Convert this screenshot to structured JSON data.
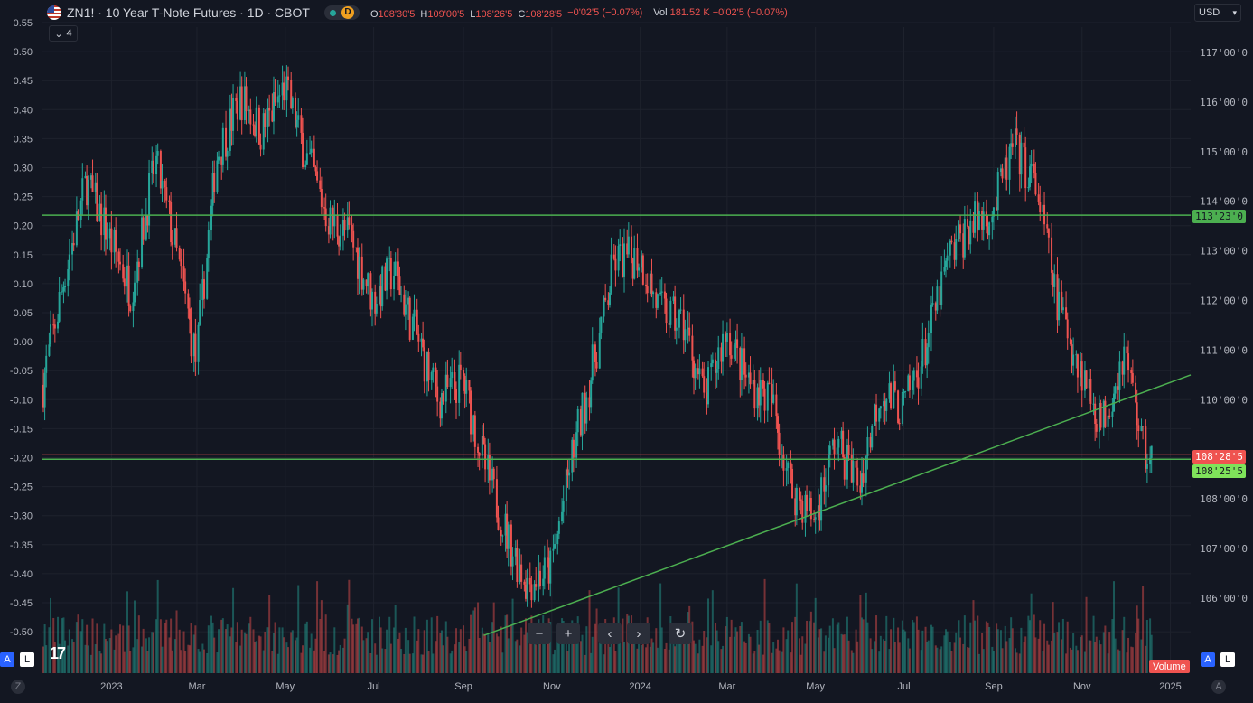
{
  "header": {
    "title": "ZN1! · 10 Year T-Note Futures · 1D · CBOT",
    "timeframe_badge": "D",
    "ohlc": [
      {
        "k": "O",
        "v": "108'30'5"
      },
      {
        "k": "H",
        "v": "109'00'5"
      },
      {
        "k": "L",
        "v": "108'26'5"
      },
      {
        "k": "C",
        "v": "108'28'5"
      }
    ],
    "change": "−0'02'5 (−0.07%)",
    "vol_label": "Vol",
    "vol_value": "181.52 K",
    "vol_change": "−0'02'5 (−0.07%)",
    "indicators_count": "4"
  },
  "currency": "USD",
  "price_tags": {
    "resistance": "113'23'0",
    "last": "108'28'5",
    "support": "108'25'5"
  },
  "volume_label": "Volume",
  "corner_buttons": {
    "auto": "A",
    "log": "L",
    "auto_right": "A",
    "log_right": "L",
    "zoom_left": "Z",
    "zoom_right": "A"
  },
  "colors": {
    "up": "#26a69a",
    "down": "#ef5350",
    "line": "#4caf50",
    "bg": "#131722",
    "grid": "#1e222d"
  },
  "icons": [
    "chevron-down-icon",
    "zoom-out-icon",
    "zoom-in-icon",
    "scroll-left-icon",
    "scroll-right-icon",
    "reset-icon"
  ],
  "chart_data": {
    "type": "candlestick",
    "left_axis_ticks": [
      "0.55",
      "0.50",
      "0.45",
      "0.40",
      "0.35",
      "0.30",
      "0.25",
      "0.20",
      "0.15",
      "0.10",
      "0.05",
      "0.00",
      "-0.05",
      "-0.10",
      "-0.15",
      "-0.20",
      "-0.25",
      "-0.30",
      "-0.35",
      "-0.40",
      "-0.45",
      "-0.50"
    ],
    "right_axis_ticks": [
      "117'00'0",
      "116'00'0",
      "115'00'0",
      "114'00'0",
      "113'00'0",
      "112'00'0",
      "111'00'0",
      "110'00'0",
      "108'00'0",
      "107'00'0",
      "106'00'0"
    ],
    "x_ticks": [
      "2023",
      "Mar",
      "May",
      "Jul",
      "Sep",
      "Nov",
      "2024",
      "Mar",
      "May",
      "Jul",
      "Sep",
      "Nov",
      "2025"
    ],
    "price_range": [
      105.0,
      117.0
    ],
    "close_path": [
      {
        "date": "2022-11-15",
        "close": 110.3
      },
      {
        "date": "2022-12-01",
        "close": 112.6
      },
      {
        "date": "2022-12-15",
        "close": 114.4
      },
      {
        "date": "2023-01-01",
        "close": 113.2
      },
      {
        "date": "2023-01-15",
        "close": 112.2
      },
      {
        "date": "2023-02-01",
        "close": 114.8
      },
      {
        "date": "2023-02-15",
        "close": 113.0
      },
      {
        "date": "2023-03-01",
        "close": 110.8
      },
      {
        "date": "2023-03-15",
        "close": 114.9
      },
      {
        "date": "2023-04-01",
        "close": 116.1
      },
      {
        "date": "2023-04-15",
        "close": 115.4
      },
      {
        "date": "2023-05-01",
        "close": 116.3
      },
      {
        "date": "2023-05-15",
        "close": 115.0
      },
      {
        "date": "2023-06-01",
        "close": 113.6
      },
      {
        "date": "2023-06-15",
        "close": 113.3
      },
      {
        "date": "2023-07-01",
        "close": 112.0
      },
      {
        "date": "2023-07-15",
        "close": 112.6
      },
      {
        "date": "2023-08-01",
        "close": 111.2
      },
      {
        "date": "2023-08-15",
        "close": 110.0
      },
      {
        "date": "2023-09-01",
        "close": 110.4
      },
      {
        "date": "2023-09-15",
        "close": 108.8
      },
      {
        "date": "2023-10-01",
        "close": 107.3
      },
      {
        "date": "2023-10-15",
        "close": 106.3
      },
      {
        "date": "2023-11-01",
        "close": 106.6
      },
      {
        "date": "2023-11-15",
        "close": 108.8
      },
      {
        "date": "2023-12-01",
        "close": 110.8
      },
      {
        "date": "2023-12-15",
        "close": 112.8
      },
      {
        "date": "2024-01-01",
        "close": 112.9
      },
      {
        "date": "2024-01-15",
        "close": 111.8
      },
      {
        "date": "2024-02-01",
        "close": 111.5
      },
      {
        "date": "2024-02-15",
        "close": 110.0
      },
      {
        "date": "2024-03-01",
        "close": 111.4
      },
      {
        "date": "2024-03-15",
        "close": 110.4
      },
      {
        "date": "2024-04-01",
        "close": 110.0
      },
      {
        "date": "2024-04-15",
        "close": 108.2
      },
      {
        "date": "2024-05-01",
        "close": 107.6
      },
      {
        "date": "2024-05-15",
        "close": 109.2
      },
      {
        "date": "2024-06-01",
        "close": 108.3
      },
      {
        "date": "2024-06-15",
        "close": 110.2
      },
      {
        "date": "2024-07-01",
        "close": 109.8
      },
      {
        "date": "2024-07-15",
        "close": 110.9
      },
      {
        "date": "2024-08-01",
        "close": 112.8
      },
      {
        "date": "2024-08-15",
        "close": 113.5
      },
      {
        "date": "2024-09-01",
        "close": 113.8
      },
      {
        "date": "2024-09-15",
        "close": 115.1
      },
      {
        "date": "2024-10-01",
        "close": 114.3
      },
      {
        "date": "2024-10-15",
        "close": 112.0
      },
      {
        "date": "2024-11-01",
        "close": 110.6
      },
      {
        "date": "2024-11-15",
        "close": 109.5
      },
      {
        "date": "2024-12-01",
        "close": 111.0
      },
      {
        "date": "2024-12-15",
        "close": 108.9
      }
    ],
    "horizontal_levels": [
      113.72,
      108.8
    ],
    "trendline": [
      {
        "date": "2023-09-15",
        "price": 105.25
      },
      {
        "date": "2025-01-15",
        "price": 110.5
      }
    ]
  }
}
